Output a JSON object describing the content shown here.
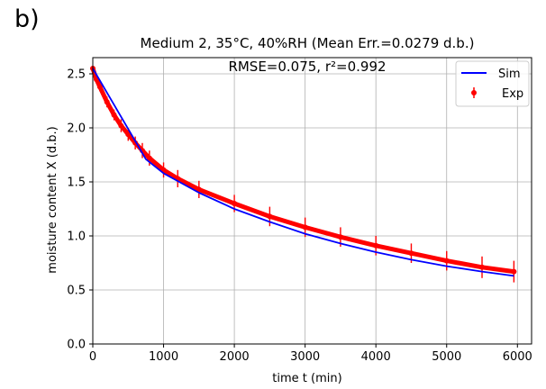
{
  "panel_label": "b)",
  "chart_data": {
    "type": "line",
    "title": "Medium 2, 35°C, 40%RH (Mean Err.=0.0279 d.b.)",
    "annotation": "RMSE=0.075, r²=0.992",
    "xlabel": "time t (min)",
    "ylabel": "moisture content X (d.b.)",
    "xlim": [
      0,
      6200
    ],
    "ylim": [
      0,
      2.65
    ],
    "xticks": [
      0,
      1000,
      2000,
      3000,
      4000,
      5000,
      6000
    ],
    "yticks": [
      "0.0",
      "0.5",
      "1.0",
      "1.5",
      "2.0",
      "2.5"
    ],
    "grid": true,
    "legend_position": "top-right",
    "series": [
      {
        "name": "Sim",
        "kind": "line",
        "color": "#0000ff",
        "x": [
          0,
          250,
          500,
          750,
          1000,
          1500,
          2000,
          2500,
          3000,
          3500,
          4000,
          4500,
          5000,
          5500,
          5950
        ],
        "y": [
          2.55,
          2.27,
          1.99,
          1.71,
          1.58,
          1.4,
          1.25,
          1.13,
          1.02,
          0.93,
          0.85,
          0.78,
          0.72,
          0.67,
          0.63
        ]
      },
      {
        "name": "Exp",
        "kind": "points-with-errorbars",
        "color": "#ff0000",
        "x": [
          0,
          50,
          100,
          200,
          300,
          400,
          500,
          600,
          700,
          800,
          1000,
          1200,
          1500,
          2000,
          2500,
          3000,
          3500,
          4000,
          4500,
          5000,
          5500,
          5950
        ],
        "y": [
          2.55,
          2.45,
          2.38,
          2.24,
          2.12,
          2.02,
          1.94,
          1.86,
          1.79,
          1.72,
          1.61,
          1.53,
          1.43,
          1.3,
          1.18,
          1.08,
          0.99,
          0.91,
          0.84,
          0.77,
          0.71,
          0.67
        ],
        "error": [
          0.02,
          0.03,
          0.04,
          0.05,
          0.05,
          0.06,
          0.06,
          0.06,
          0.07,
          0.07,
          0.07,
          0.08,
          0.08,
          0.08,
          0.09,
          0.09,
          0.09,
          0.09,
          0.09,
          0.09,
          0.1,
          0.1
        ]
      }
    ]
  }
}
